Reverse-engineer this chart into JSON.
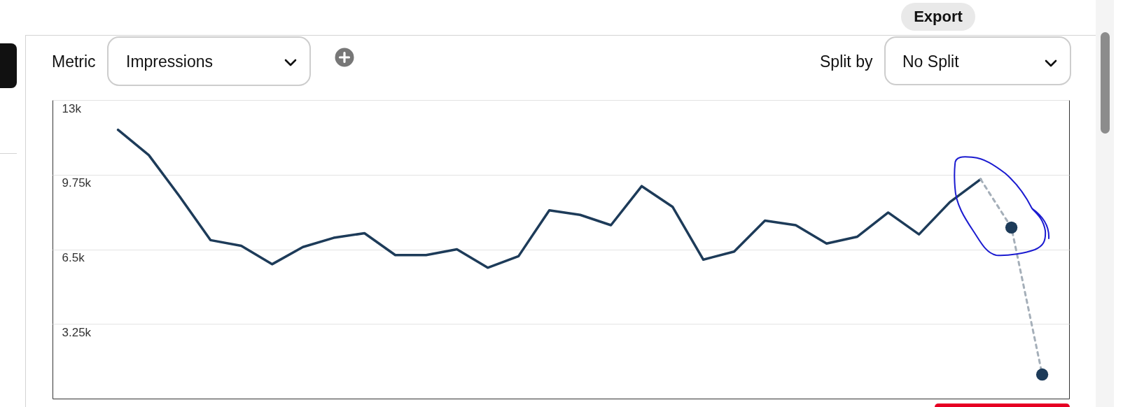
{
  "chart_data": {
    "type": "line",
    "categories": [
      null,
      null,
      null,
      null,
      null,
      null,
      null,
      null,
      null,
      null,
      null,
      null,
      null,
      null,
      null,
      null,
      null,
      null,
      null,
      null,
      null,
      null,
      null,
      null,
      null,
      null,
      null,
      null,
      null,
      null,
      null
    ],
    "series": [
      {
        "color": "#1d3b59",
        "values": [
          11700,
          10600,
          8800,
          6900,
          6650,
          5850,
          6600,
          7000,
          7200,
          6250,
          6250,
          6500,
          5700,
          6200,
          8200,
          8000,
          7550,
          9250,
          8350,
          6050,
          6400,
          7750,
          7550,
          6750,
          7050,
          8100,
          7150,
          8550,
          9550,
          null,
          null
        ]
      },
      {
        "color": "#a5afb9",
        "line_style": "dashed",
        "values": [
          null,
          null,
          null,
          null,
          null,
          null,
          null,
          null,
          null,
          null,
          null,
          null,
          null,
          null,
          null,
          null,
          null,
          null,
          null,
          null,
          null,
          null,
          null,
          null,
          null,
          null,
          null,
          null,
          9550,
          7450,
          1050
        ]
      },
      {
        "type": "scatter",
        "color": "#1d3b59",
        "marker": "circle",
        "values": [
          null,
          null,
          null,
          null,
          null,
          null,
          null,
          null,
          null,
          null,
          null,
          null,
          null,
          null,
          null,
          null,
          null,
          null,
          null,
          null,
          null,
          null,
          null,
          null,
          null,
          null,
          null,
          null,
          null,
          7450,
          1050
        ]
      }
    ],
    "ylim": [
      0,
      13000
    ],
    "yticks": [
      {
        "value": 3250,
        "label": "3.25k"
      },
      {
        "value": 6500,
        "label": "6.5k"
      },
      {
        "value": 9750,
        "label": "9.75k"
      },
      {
        "value": 13000,
        "label": "13k"
      }
    ],
    "grid": "y",
    "tick_labels": "y",
    "annotations": [
      "Export",
      "Metric",
      "Impressions",
      "Split by",
      "No Split"
    ]
  }
}
